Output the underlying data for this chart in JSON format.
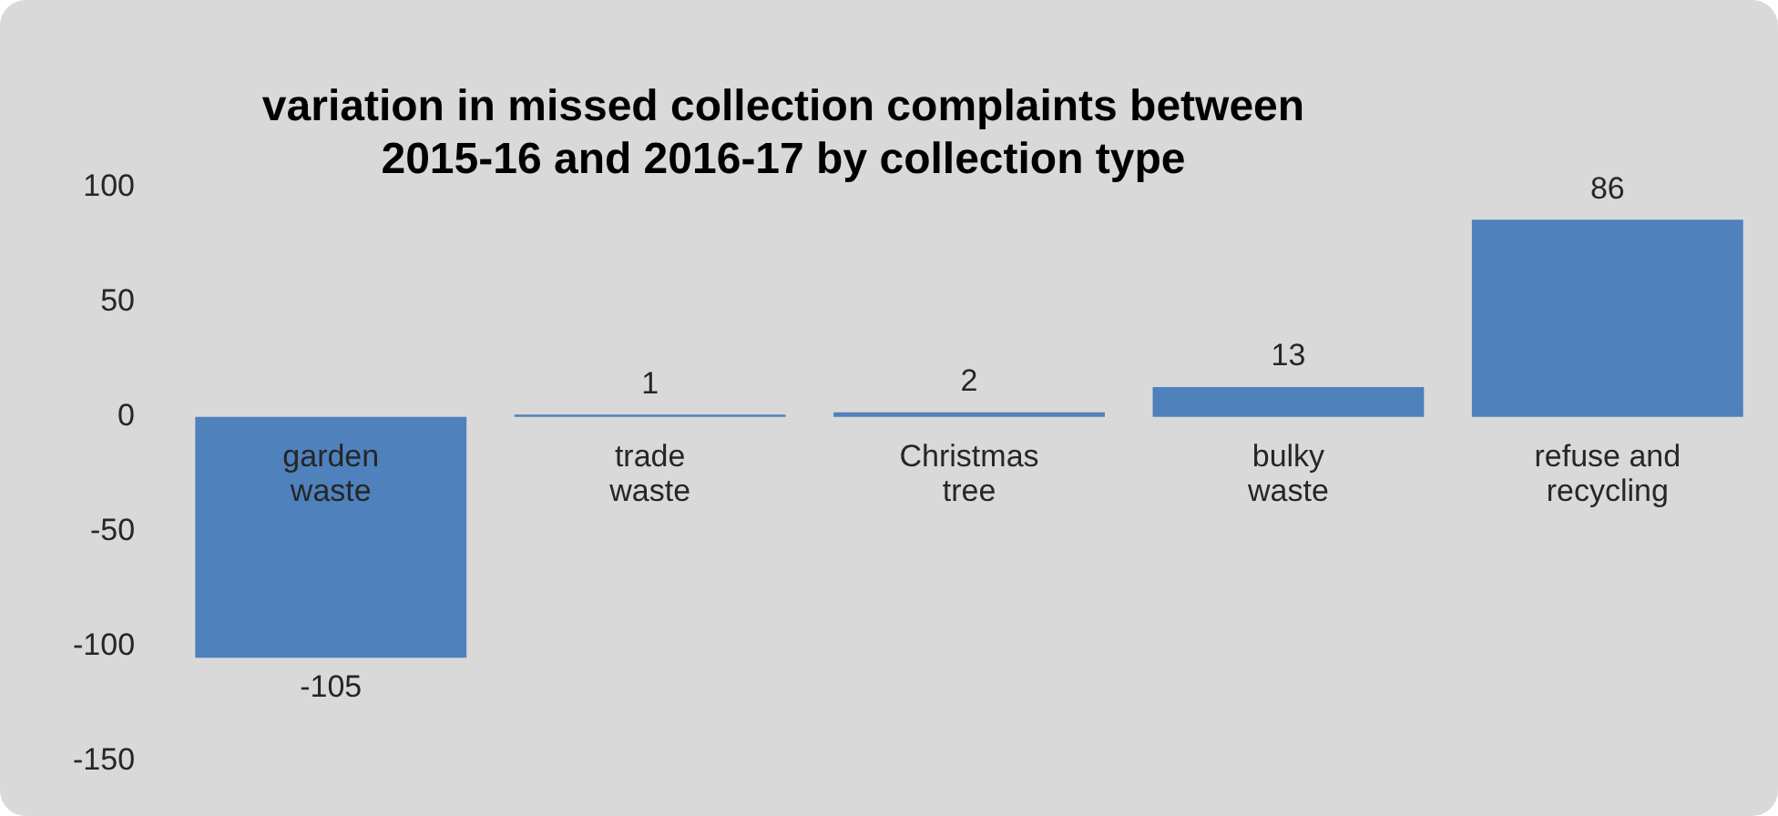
{
  "chart_data": {
    "type": "bar",
    "title": "variation in missed collection complaints between 2015-16 and 2016-17 by collection type",
    "categories": [
      "garden waste",
      "trade waste",
      "Christmas tree",
      "bulky waste",
      "refuse and recycling"
    ],
    "values": [
      -105,
      1,
      2,
      13,
      86
    ],
    "color": "#4f81bd",
    "ylim": [
      -150,
      100
    ],
    "yticks": [
      -150,
      -100,
      -50,
      0,
      50,
      100
    ],
    "grid": false,
    "legend": false,
    "data_labels": true
  }
}
